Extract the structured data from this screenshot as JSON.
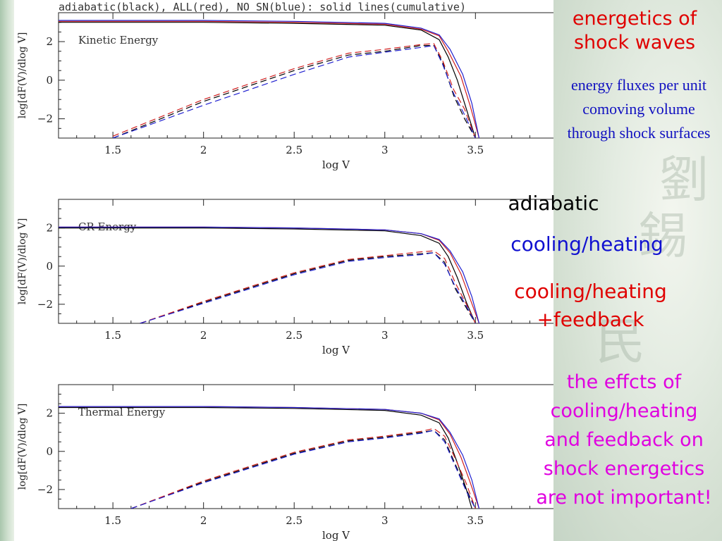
{
  "slide": {
    "heading": "energetics of shock waves",
    "subtext": "energy fluxes per unit comoving volume through shock surfaces",
    "legend_labels": {
      "adiabatic": "adiabatic",
      "cooling": "cooling/heating",
      "feedback": "cooling/heating +feedback"
    },
    "conclusion": "the effcts of cooling/heating and feedback on shock energetics are not important!",
    "colors": {
      "heading": "#e00000",
      "subtext": "#1010c0",
      "adiabatic": "#000000",
      "cooling": "#1010d0",
      "feedback": "#e00000",
      "conclusion": "#e000e0"
    }
  },
  "chart_data": [
    {
      "type": "line",
      "title": "adiabatic(black), ALL(red), NO SN(blue): solid lines(cumulative)",
      "panel_label": "Kinetic Energy",
      "xlabel": "log V",
      "ylabel": "log[dF(V)/dlog V]",
      "xlim": [
        1.2,
        3.95
      ],
      "ylim": [
        -3,
        3.5
      ],
      "xticks": [
        "1.5",
        "2",
        "2.5",
        "3",
        "3.5"
      ],
      "yticks": [
        "2",
        "0",
        "−2"
      ],
      "series": [
        {
          "name": "adiabatic",
          "style": "cumulative",
          "color": "#000000",
          "x": [
            1.2,
            2.0,
            2.5,
            3.0,
            3.2,
            3.3,
            3.35,
            3.4,
            3.45,
            3.5
          ],
          "y": [
            3.0,
            3.0,
            2.95,
            2.85,
            2.6,
            2.1,
            1.2,
            0.0,
            -1.5,
            -3.0
          ]
        },
        {
          "name": "ALL",
          "style": "cumulative",
          "color": "#d02020",
          "x": [
            1.2,
            2.0,
            2.5,
            3.0,
            3.2,
            3.3,
            3.35,
            3.42,
            3.47,
            3.52
          ],
          "y": [
            3.05,
            3.05,
            3.0,
            2.9,
            2.65,
            2.3,
            1.5,
            0.2,
            -1.3,
            -3.0
          ]
        },
        {
          "name": "NO SN",
          "style": "cumulative",
          "color": "#2020d0",
          "x": [
            1.2,
            2.0,
            2.5,
            3.0,
            3.2,
            3.3,
            3.36,
            3.43,
            3.48,
            3.52
          ],
          "y": [
            3.1,
            3.1,
            3.05,
            2.95,
            2.7,
            2.35,
            1.6,
            0.3,
            -1.2,
            -3.0
          ]
        },
        {
          "name": "adiabatic",
          "style": "differential",
          "color": "#000000",
          "x": [
            1.5,
            2.0,
            2.5,
            2.8,
            3.0,
            3.2,
            3.27,
            3.32,
            3.38,
            3.44,
            3.5
          ],
          "y": [
            -3.0,
            -1.1,
            0.5,
            1.3,
            1.5,
            1.8,
            1.8,
            0.9,
            -0.8,
            -2.0,
            -3.0
          ]
        },
        {
          "name": "ALL",
          "style": "differential",
          "color": "#d02020",
          "x": [
            1.5,
            2.0,
            2.5,
            2.8,
            3.0,
            3.2,
            3.27,
            3.32,
            3.38,
            3.44,
            3.5
          ],
          "y": [
            -2.9,
            -1.0,
            0.6,
            1.4,
            1.6,
            1.85,
            1.9,
            1.0,
            -0.5,
            -1.5,
            -3.0
          ]
        },
        {
          "name": "NO SN",
          "style": "differential",
          "color": "#2020d0",
          "x": [
            1.5,
            2.0,
            2.5,
            2.8,
            3.0,
            3.2,
            3.27,
            3.32,
            3.38,
            3.44,
            3.5
          ],
          "y": [
            -3.0,
            -1.3,
            0.3,
            1.2,
            1.45,
            1.7,
            1.8,
            0.8,
            -0.7,
            -1.8,
            -3.0
          ]
        }
      ]
    },
    {
      "type": "line",
      "title": "",
      "panel_label": "CR Energy",
      "xlabel": "log V",
      "ylabel": "log[dF(V)/dlog V]",
      "xlim": [
        1.2,
        3.95
      ],
      "ylim": [
        -3,
        3.5
      ],
      "xticks": [
        "1.5",
        "2",
        "2.5",
        "3",
        "3.5"
      ],
      "yticks": [
        "2",
        "0",
        "−2"
      ],
      "series": [
        {
          "name": "adiabatic",
          "style": "cumulative",
          "color": "#000000",
          "x": [
            1.2,
            2.0,
            2.5,
            3.0,
            3.2,
            3.3,
            3.35,
            3.4,
            3.45,
            3.5
          ],
          "y": [
            2.0,
            2.0,
            1.95,
            1.85,
            1.6,
            1.2,
            0.5,
            -0.6,
            -1.9,
            -3.0
          ]
        },
        {
          "name": "ALL",
          "style": "cumulative",
          "color": "#d02020",
          "x": [
            1.2,
            2.0,
            2.5,
            3.0,
            3.2,
            3.3,
            3.36,
            3.42,
            3.47,
            3.52
          ],
          "y": [
            2.05,
            2.05,
            2.0,
            1.9,
            1.7,
            1.35,
            0.7,
            -0.4,
            -1.7,
            -3.0
          ]
        },
        {
          "name": "NO SN",
          "style": "cumulative",
          "color": "#2020d0",
          "x": [
            1.2,
            2.0,
            2.5,
            3.0,
            3.2,
            3.3,
            3.36,
            3.43,
            3.48,
            3.52
          ],
          "y": [
            2.05,
            2.05,
            2.0,
            1.9,
            1.7,
            1.4,
            0.8,
            -0.3,
            -1.6,
            -3.0
          ]
        },
        {
          "name": "adiabatic",
          "style": "differential",
          "color": "#000000",
          "x": [
            1.65,
            2.0,
            2.5,
            2.8,
            3.0,
            3.2,
            3.27,
            3.33,
            3.39,
            3.45,
            3.5
          ],
          "y": [
            -3.0,
            -1.9,
            -0.4,
            0.3,
            0.5,
            0.65,
            0.7,
            0.2,
            -1.2,
            -2.2,
            -3.0
          ]
        },
        {
          "name": "ALL",
          "style": "differential",
          "color": "#d02020",
          "x": [
            1.65,
            2.0,
            2.5,
            2.8,
            3.0,
            3.2,
            3.27,
            3.33,
            3.39,
            3.45,
            3.5
          ],
          "y": [
            -3.0,
            -1.85,
            -0.35,
            0.35,
            0.55,
            0.75,
            0.8,
            0.4,
            -0.9,
            -2.0,
            -3.0
          ]
        },
        {
          "name": "NO SN",
          "style": "differential",
          "color": "#2020d0",
          "x": [
            1.65,
            2.0,
            2.5,
            2.8,
            3.0,
            3.2,
            3.27,
            3.33,
            3.39,
            3.45,
            3.5
          ],
          "y": [
            -3.0,
            -1.95,
            -0.45,
            0.25,
            0.45,
            0.6,
            0.7,
            0.1,
            -1.1,
            -2.1,
            -3.0
          ]
        }
      ]
    },
    {
      "type": "line",
      "title": "",
      "panel_label": "Thermal Energy",
      "xlabel": "log V",
      "ylabel": "log[dF(V)/dlog V]",
      "xlim": [
        1.2,
        3.95
      ],
      "ylim": [
        -3,
        3.5
      ],
      "xticks": [
        "1.5",
        "2",
        "2.5",
        "3",
        "3.5"
      ],
      "yticks": [
        "2",
        "0",
        "−2"
      ],
      "series": [
        {
          "name": "adiabatic",
          "style": "cumulative",
          "color": "#000000",
          "x": [
            1.2,
            2.0,
            2.5,
            3.0,
            3.2,
            3.3,
            3.35,
            3.4,
            3.45,
            3.48
          ],
          "y": [
            2.3,
            2.3,
            2.25,
            2.15,
            1.9,
            1.5,
            0.7,
            -0.6,
            -2.0,
            -3.0
          ]
        },
        {
          "name": "ALL",
          "style": "cumulative",
          "color": "#d02020",
          "x": [
            1.2,
            2.0,
            2.5,
            3.0,
            3.2,
            3.3,
            3.36,
            3.42,
            3.47,
            3.52
          ],
          "y": [
            2.35,
            2.35,
            2.3,
            2.2,
            2.0,
            1.65,
            0.9,
            -0.3,
            -1.6,
            -3.0
          ]
        },
        {
          "name": "NO SN",
          "style": "cumulative",
          "color": "#2020d0",
          "x": [
            1.2,
            2.0,
            2.5,
            3.0,
            3.2,
            3.3,
            3.36,
            3.43,
            3.48,
            3.52
          ],
          "y": [
            2.35,
            2.35,
            2.3,
            2.2,
            2.0,
            1.7,
            1.0,
            -0.2,
            -1.5,
            -3.0
          ]
        },
        {
          "name": "adiabatic",
          "style": "differential",
          "color": "#000000",
          "x": [
            1.6,
            2.0,
            2.5,
            2.8,
            3.0,
            3.2,
            3.27,
            3.33,
            3.39,
            3.45,
            3.5
          ],
          "y": [
            -3.0,
            -1.6,
            -0.1,
            0.55,
            0.75,
            1.0,
            1.1,
            0.6,
            -0.7,
            -2.0,
            -3.0
          ]
        },
        {
          "name": "ALL",
          "style": "differential",
          "color": "#d02020",
          "x": [
            1.6,
            2.0,
            2.5,
            2.8,
            3.0,
            3.2,
            3.27,
            3.33,
            3.39,
            3.45,
            3.5
          ],
          "y": [
            -3.0,
            -1.55,
            -0.05,
            0.6,
            0.8,
            1.05,
            1.2,
            0.8,
            -0.4,
            -1.7,
            -3.0
          ]
        },
        {
          "name": "NO SN",
          "style": "differential",
          "color": "#2020d0",
          "x": [
            1.6,
            2.0,
            2.5,
            2.8,
            3.0,
            3.2,
            3.27,
            3.33,
            3.39,
            3.45,
            3.5
          ],
          "y": [
            -3.0,
            -1.65,
            -0.15,
            0.5,
            0.7,
            0.95,
            1.1,
            0.5,
            -0.8,
            -2.1,
            -3.0
          ]
        }
      ]
    }
  ]
}
